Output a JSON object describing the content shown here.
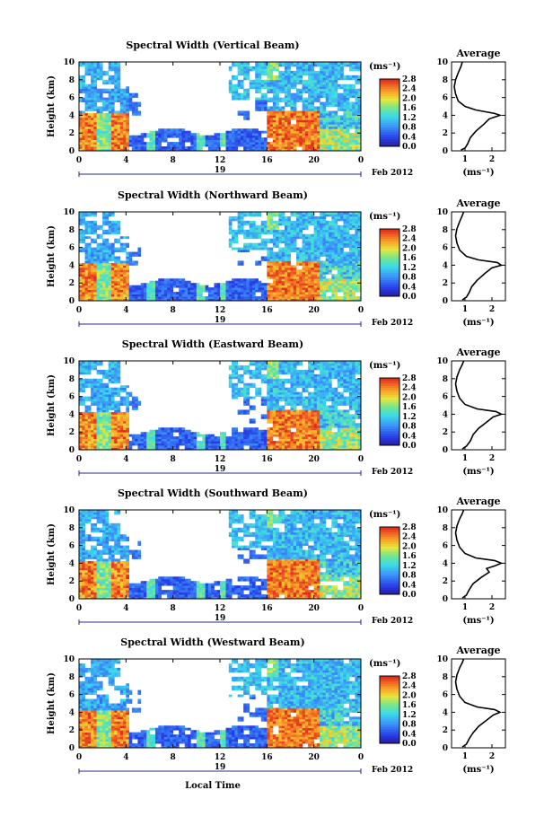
{
  "chart_data": [
    {
      "type": "heatmap",
      "title": "Spectral Width (Vertical Beam)",
      "ylabel": "Height (km)",
      "xticks": [
        "0",
        "4",
        "8",
        "12",
        "16",
        "20",
        "0"
      ],
      "yticks": [
        "0",
        "2",
        "4",
        "6",
        "8",
        "10"
      ],
      "date_label": "19",
      "date_suffix": "Feb 2012",
      "ylim": [
        0,
        10
      ],
      "xlim": [
        0,
        24
      ],
      "colorbar": {
        "unit": "(ms⁻¹)",
        "ticks": [
          "0.0",
          "0.4",
          "0.8",
          "1.2",
          "1.6",
          "2.0",
          "2.4",
          "2.8"
        ],
        "range": [
          0,
          2.8
        ]
      },
      "profile": {
        "title": "Average",
        "xlabel": "(ms⁻¹)",
        "xticks": [
          "1",
          "2"
        ],
        "yticks": [
          "0",
          "2",
          "4",
          "6",
          "8",
          "10"
        ],
        "xlim": [
          0.5,
          2.5
        ],
        "points": [
          [
            0.85,
            0.1
          ],
          [
            1.0,
            0.3
          ],
          [
            1.1,
            0.8
          ],
          [
            1.2,
            1.5
          ],
          [
            1.4,
            2.2
          ],
          [
            1.7,
            3.0
          ],
          [
            1.9,
            3.6
          ],
          [
            2.3,
            4.0
          ],
          [
            2.1,
            4.2
          ],
          [
            1.4,
            4.6
          ],
          [
            1.0,
            5.0
          ],
          [
            0.75,
            5.6
          ],
          [
            0.65,
            6.4
          ],
          [
            0.6,
            7.2
          ],
          [
            0.65,
            8.0
          ],
          [
            0.75,
            8.8
          ],
          [
            0.85,
            9.5
          ],
          [
            0.9,
            10.0
          ]
        ]
      }
    },
    {
      "type": "heatmap",
      "title": "Spectral Width (Northward Beam)",
      "ylabel": "Height (km)",
      "xticks": [
        "0",
        "4",
        "8",
        "12",
        "16",
        "20",
        "0"
      ],
      "yticks": [
        "0",
        "2",
        "4",
        "6",
        "8",
        "10"
      ],
      "date_label": "19",
      "date_suffix": "Feb 2012",
      "ylim": [
        0,
        10
      ],
      "xlim": [
        0,
        24
      ],
      "colorbar": {
        "unit": "(ms⁻¹)",
        "ticks": [
          "0.0",
          "0.4",
          "0.8",
          "1.2",
          "1.6",
          "2.0",
          "2.4",
          "2.8"
        ],
        "range": [
          0,
          2.8
        ]
      },
      "profile": {
        "title": "Average",
        "xlabel": "(ms⁻¹)",
        "xticks": [
          "1",
          "2"
        ],
        "yticks": [
          "0",
          "2",
          "4",
          "6",
          "8",
          "10"
        ],
        "xlim": [
          0.5,
          2.5
        ],
        "points": [
          [
            0.9,
            0.1
          ],
          [
            1.05,
            0.4
          ],
          [
            1.15,
            0.9
          ],
          [
            1.25,
            1.6
          ],
          [
            1.45,
            2.3
          ],
          [
            1.75,
            3.1
          ],
          [
            2.0,
            3.7
          ],
          [
            2.35,
            4.0
          ],
          [
            2.2,
            4.3
          ],
          [
            1.5,
            4.6
          ],
          [
            1.05,
            5.0
          ],
          [
            0.8,
            5.7
          ],
          [
            0.7,
            6.5
          ],
          [
            0.65,
            7.3
          ],
          [
            0.7,
            8.1
          ],
          [
            0.8,
            8.9
          ],
          [
            0.9,
            9.6
          ],
          [
            0.95,
            10.0
          ]
        ]
      }
    },
    {
      "type": "heatmap",
      "title": "Spectral Width (Eastward Beam)",
      "ylabel": "Height (km)",
      "xticks": [
        "0",
        "4",
        "8",
        "12",
        "16",
        "20",
        "0"
      ],
      "yticks": [
        "0",
        "2",
        "4",
        "6",
        "8",
        "10"
      ],
      "date_label": "19",
      "date_suffix": "Feb 2012",
      "ylim": [
        0,
        10
      ],
      "xlim": [
        0,
        24
      ],
      "colorbar": {
        "unit": "(ms⁻¹)",
        "ticks": [
          "0.0",
          "0.4",
          "0.8",
          "1.2",
          "1.6",
          "2.0",
          "2.4",
          "2.8"
        ],
        "range": [
          0,
          2.8
        ]
      },
      "profile": {
        "title": "Average",
        "xlabel": "(ms⁻¹)",
        "xticks": [
          "1",
          "2"
        ],
        "yticks": [
          "0",
          "2",
          "4",
          "6",
          "8",
          "10"
        ],
        "xlim": [
          0.5,
          2.5
        ],
        "points": [
          [
            0.9,
            0.1
          ],
          [
            1.05,
            0.4
          ],
          [
            1.2,
            1.0
          ],
          [
            1.3,
            1.7
          ],
          [
            1.5,
            2.4
          ],
          [
            1.8,
            3.1
          ],
          [
            2.05,
            3.7
          ],
          [
            2.35,
            4.0
          ],
          [
            2.15,
            4.3
          ],
          [
            1.45,
            4.6
          ],
          [
            1.0,
            5.1
          ],
          [
            0.8,
            5.8
          ],
          [
            0.7,
            6.6
          ],
          [
            0.65,
            7.4
          ],
          [
            0.7,
            8.2
          ],
          [
            0.8,
            9.0
          ],
          [
            0.9,
            9.6
          ],
          [
            0.95,
            10.0
          ]
        ]
      }
    },
    {
      "type": "heatmap",
      "title": "Spectral Width (Southward Beam)",
      "ylabel": "Height (km)",
      "xticks": [
        "0",
        "4",
        "8",
        "12",
        "16",
        "20",
        "0"
      ],
      "yticks": [
        "0",
        "2",
        "4",
        "6",
        "8",
        "10"
      ],
      "date_label": "19",
      "date_suffix": "Feb 2012",
      "ylim": [
        0,
        10
      ],
      "xlim": [
        0,
        24
      ],
      "colorbar": {
        "unit": "(ms⁻¹)",
        "ticks": [
          "0.0",
          "0.4",
          "0.8",
          "1.2",
          "1.6",
          "2.0",
          "2.4",
          "2.8"
        ],
        "range": [
          0,
          2.8
        ]
      },
      "profile": {
        "title": "Average",
        "xlabel": "(ms⁻¹)",
        "xticks": [
          "1",
          "2"
        ],
        "yticks": [
          "0",
          "2",
          "4",
          "6",
          "8",
          "10"
        ],
        "xlim": [
          0.5,
          2.5
        ],
        "points": [
          [
            0.9,
            0.1
          ],
          [
            1.05,
            0.4
          ],
          [
            1.15,
            1.0
          ],
          [
            1.3,
            1.7
          ],
          [
            1.6,
            2.4
          ],
          [
            1.9,
            3.0
          ],
          [
            1.8,
            3.4
          ],
          [
            2.1,
            3.7
          ],
          [
            2.35,
            4.0
          ],
          [
            2.1,
            4.3
          ],
          [
            1.4,
            4.6
          ],
          [
            1.0,
            5.1
          ],
          [
            0.8,
            5.8
          ],
          [
            0.7,
            6.6
          ],
          [
            0.65,
            7.4
          ],
          [
            0.7,
            8.2
          ],
          [
            0.8,
            9.0
          ],
          [
            0.9,
            9.6
          ],
          [
            0.95,
            10.0
          ]
        ]
      }
    },
    {
      "type": "heatmap",
      "title": "Spectral Width (Westward Beam)",
      "ylabel": "Height (km)",
      "xticks": [
        "0",
        "4",
        "8",
        "12",
        "16",
        "20",
        "0"
      ],
      "yticks": [
        "0",
        "2",
        "4",
        "6",
        "8",
        "10"
      ],
      "date_label": "19",
      "date_suffix": "Feb 2012",
      "xlabel": "Local Time",
      "ylim": [
        0,
        10
      ],
      "xlim": [
        0,
        24
      ],
      "colorbar": {
        "unit": "(ms⁻¹)",
        "ticks": [
          "0.0",
          "0.4",
          "0.8",
          "1.2",
          "1.6",
          "2.0",
          "2.4",
          "2.8"
        ],
        "range": [
          0,
          2.8
        ]
      },
      "profile": {
        "title": "Average",
        "xlabel": "(ms⁻¹)",
        "xticks": [
          "1",
          "2"
        ],
        "yticks": [
          "0",
          "2",
          "4",
          "6",
          "8",
          "10"
        ],
        "xlim": [
          0.5,
          2.5
        ],
        "points": [
          [
            0.9,
            0.1
          ],
          [
            1.05,
            0.4
          ],
          [
            1.15,
            1.0
          ],
          [
            1.3,
            1.7
          ],
          [
            1.5,
            2.4
          ],
          [
            1.8,
            3.1
          ],
          [
            2.05,
            3.7
          ],
          [
            2.3,
            4.0
          ],
          [
            2.1,
            4.3
          ],
          [
            1.45,
            4.6
          ],
          [
            1.0,
            5.1
          ],
          [
            0.8,
            5.8
          ],
          [
            0.7,
            6.6
          ],
          [
            0.65,
            7.4
          ],
          [
            0.7,
            8.2
          ],
          [
            0.8,
            9.0
          ],
          [
            0.9,
            9.6
          ],
          [
            0.95,
            10.0
          ]
        ]
      }
    }
  ]
}
